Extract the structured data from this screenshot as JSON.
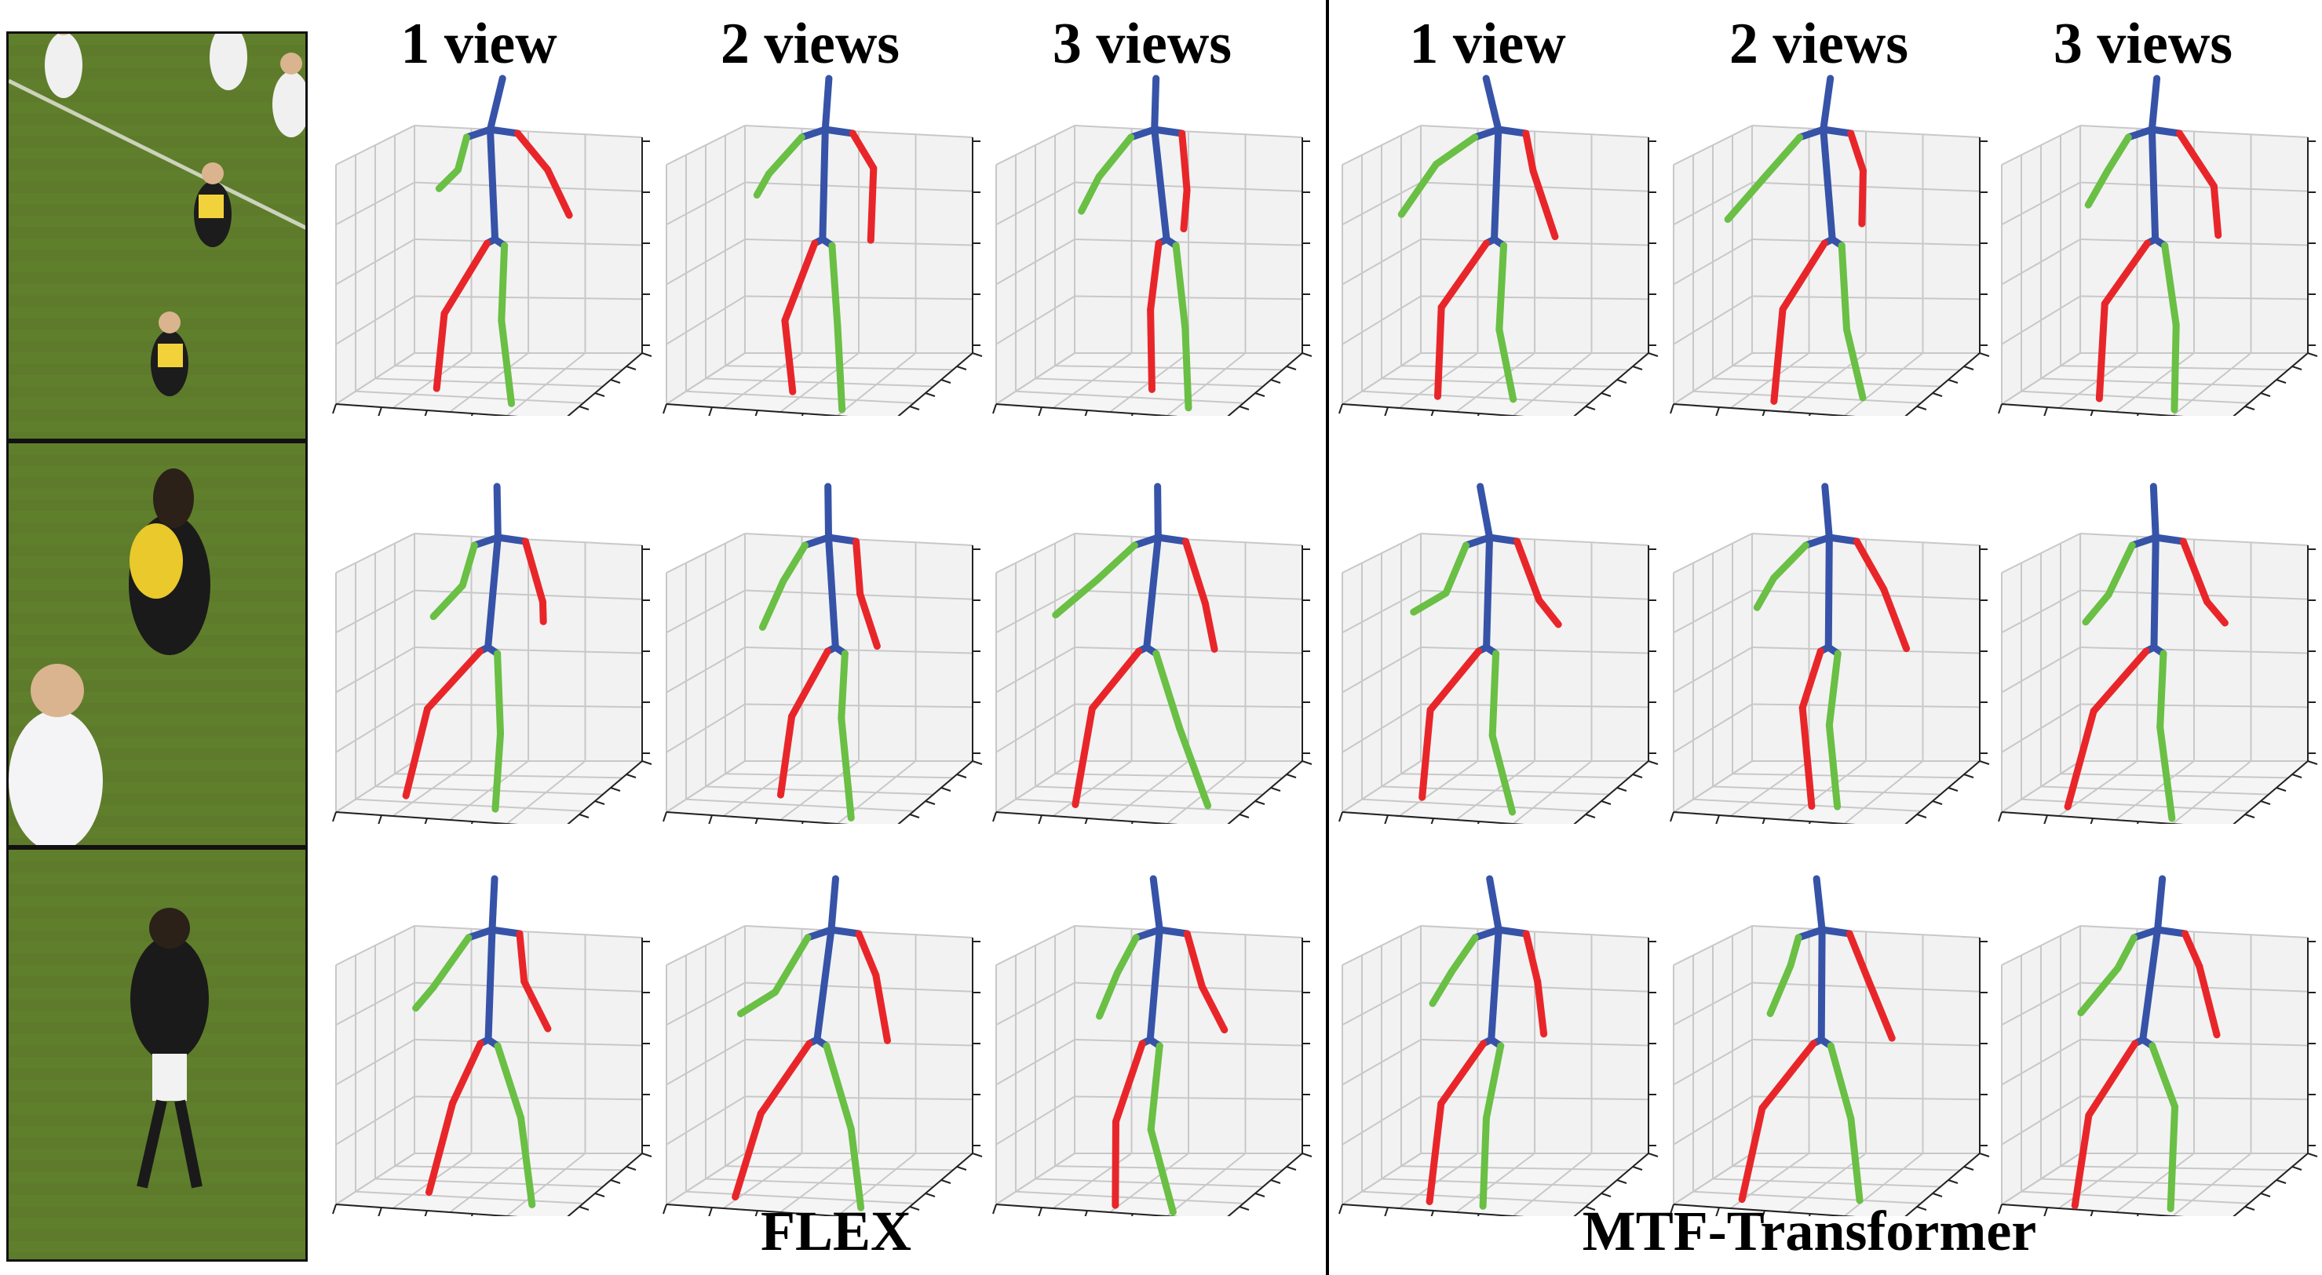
{
  "figure": {
    "column_titles": [
      "1 view",
      "2 views",
      "3 views",
      "1 view",
      "2 views",
      "3 views"
    ],
    "group_labels": [
      "FLEX",
      "MTF-Transformer"
    ]
  },
  "colors": {
    "spine": "#3653a8",
    "left_limbs": "#e8262a",
    "right_limbs": "#6abf45",
    "grid_line": "#c8c8c8",
    "grid_plane": "#f2f2f2",
    "pitch": "#5d7b2a"
  },
  "photos": [
    {
      "name": "soccer-player-1",
      "icon": "photo-icon"
    },
    {
      "name": "soccer-player-2",
      "icon": "photo-icon"
    },
    {
      "name": "soccer-player-3",
      "icon": "photo-icon"
    }
  ],
  "panel_grid": {
    "rows": 3,
    "methods": [
      "FLEX",
      "MTF-Transformer"
    ],
    "views_per_method": 3
  }
}
